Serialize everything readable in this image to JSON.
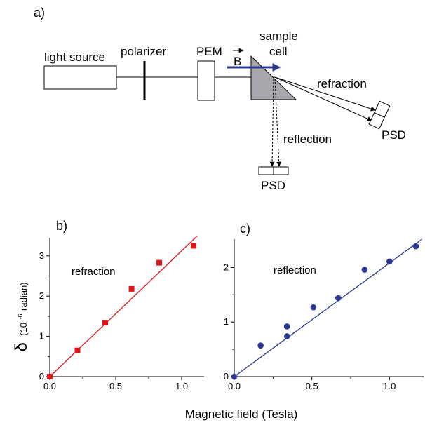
{
  "diagram": {
    "panel_label": "a)",
    "light_source_label": "light source",
    "polarizer_label": "polarizer",
    "pem_label": "PEM",
    "field_label": "B",
    "sample_cell_label_line1": "sample",
    "sample_cell_label_line2": "cell",
    "refraction_label": "refraction",
    "reflection_label": "reflection",
    "psd_label_right": "PSD",
    "psd_label_bottom": "PSD",
    "field_arrow_color": "#2b3a8f",
    "prism_fill": "#a9a6ad"
  },
  "shared": {
    "x_axis_label": "Magnetic field (Tesla)",
    "y_axis_symbol": "δ",
    "y_axis_unit_prefix": "(10",
    "y_axis_unit_exponent": "-6",
    "y_axis_unit_suffix": " radian)"
  },
  "chart_data": [
    {
      "type": "scatter",
      "panel_label": "b)",
      "annotation": "refraction",
      "marker": "square",
      "marker_color": "#e0131a",
      "line_color": "#e0131a",
      "xlim": [
        0,
        1.17
      ],
      "ylim": [
        0,
        3.45
      ],
      "x_ticks": [
        0.0,
        0.5,
        1.0
      ],
      "x_tick_labels": [
        "0.0",
        "0.5",
        "1.0"
      ],
      "y_ticks": [
        0,
        1,
        2,
        3
      ],
      "y_tick_labels": [
        "0",
        "1",
        "2",
        "3"
      ],
      "x": [
        0.0,
        0.21,
        0.42,
        0.62,
        0.83,
        1.09
      ],
      "y": [
        0.0,
        0.65,
        1.34,
        2.18,
        2.83,
        3.25
      ],
      "fit": {
        "x": [
          0.0,
          1.12
        ],
        "y": [
          0.0,
          3.5
        ]
      }
    },
    {
      "type": "scatter",
      "panel_label": "c)",
      "annotation": "reflection",
      "marker": "circle",
      "marker_color": "#2b3690",
      "line_color": "#2b3690",
      "xlim": [
        0,
        1.22
      ],
      "ylim": [
        0,
        2.52
      ],
      "x_ticks": [
        0.0,
        0.5,
        1.0
      ],
      "x_tick_labels": [
        "0.0",
        "0.5",
        "1.0"
      ],
      "y_ticks": [
        0,
        1,
        2
      ],
      "y_tick_labels": [
        "0",
        "1",
        "2"
      ],
      "x": [
        0.0,
        0.17,
        0.34,
        0.34,
        0.51,
        0.67,
        0.84,
        1.0,
        1.17
      ],
      "y": [
        0.0,
        0.57,
        0.74,
        0.92,
        1.27,
        1.44,
        1.96,
        2.11,
        2.39
      ],
      "fit": {
        "x": [
          0.0,
          1.21
        ],
        "y": [
          0.0,
          2.52
        ]
      }
    }
  ]
}
